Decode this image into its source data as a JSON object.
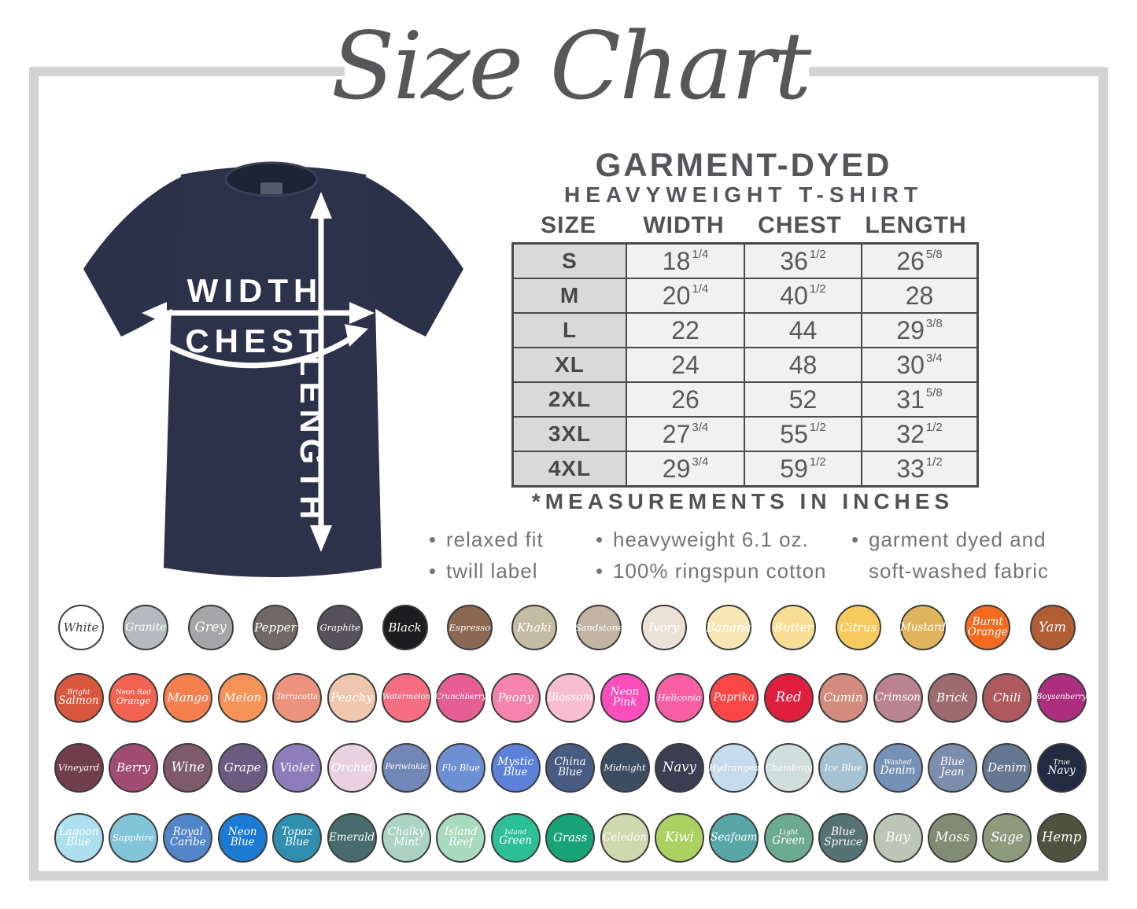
{
  "title": "Size Chart",
  "product": {
    "line1": "GARMENT-DYED",
    "line2": "HEAVYWEIGHT T-SHIRT"
  },
  "diagram": {
    "width": "WIDTH",
    "chest": "CHEST",
    "length": "LENGTH"
  },
  "size_table": {
    "columns": [
      "SIZE",
      "WIDTH",
      "CHEST",
      "LENGTH"
    ],
    "rows": [
      {
        "size": "S",
        "width": "18 1/4",
        "chest": "36 1/2",
        "length": "26 5/8"
      },
      {
        "size": "M",
        "width": "20 1/4",
        "chest": "40 1/2",
        "length": "28"
      },
      {
        "size": "L",
        "width": "22",
        "chest": "44",
        "length": "29 3/8"
      },
      {
        "size": "XL",
        "width": "24",
        "chest": "48",
        "length": "30 3/4"
      },
      {
        "size": "2XL",
        "width": "26",
        "chest": "52",
        "length": "31 5/8"
      },
      {
        "size": "3XL",
        "width": "27 3/4",
        "chest": "55 1/2",
        "length": "32 1/2"
      },
      {
        "size": "4XL",
        "width": "29 3/4",
        "chest": "59 1/2",
        "length": "33 1/2"
      }
    ],
    "footnote": "*MEASUREMENTS IN INCHES"
  },
  "features": [
    {
      "items": [
        {
          "text": "relaxed fit",
          "bullet": true
        },
        {
          "text": "twill label",
          "bullet": true
        }
      ]
    },
    {
      "items": [
        {
          "text": "heavyweight 6.1 oz.",
          "bullet": true
        },
        {
          "text": "100% ringspun cotton",
          "bullet": true
        }
      ]
    },
    {
      "items": [
        {
          "text": "garment dyed and",
          "bullet": true
        },
        {
          "text": "soft-washed fabric",
          "bullet": false
        }
      ]
    }
  ],
  "swatch_rows": [
    [
      {
        "name": "White",
        "color": "#ffffff",
        "text_color": "#3f3f3f",
        "lines": [
          "White"
        ]
      },
      {
        "name": "Granite",
        "color": "#b4babd",
        "lines": [
          "Granite"
        ]
      },
      {
        "name": "Grey",
        "color": "#a6a6a8",
        "lines": [
          "Grey"
        ]
      },
      {
        "name": "Pepper",
        "color": "#6f6a66",
        "lines": [
          "Pepper"
        ]
      },
      {
        "name": "Graphite",
        "color": "#56525a",
        "lines": [
          "Graphite"
        ]
      },
      {
        "name": "Black",
        "color": "#1d1c1e",
        "lines": [
          "Black"
        ]
      },
      {
        "name": "Espresso",
        "color": "#8c6852",
        "lines": [
          "Espresso"
        ]
      },
      {
        "name": "Khaki",
        "color": "#c4bba3",
        "lines": [
          "Khaki"
        ]
      },
      {
        "name": "Sandstone",
        "color": "#c1b4a3",
        "lines": [
          "Sandstone"
        ]
      },
      {
        "name": "Ivory",
        "color": "#ece1d7",
        "lines": [
          "Ivory"
        ]
      },
      {
        "name": "Banana",
        "color": "#f7e7b5",
        "lines": [
          "Banana"
        ]
      },
      {
        "name": "Butter",
        "color": "#f8dd95",
        "lines": [
          "Butter"
        ]
      },
      {
        "name": "Citrus",
        "color": "#f7ca5e",
        "lines": [
          "Citrus"
        ]
      },
      {
        "name": "Mustard",
        "color": "#dfb45c",
        "lines": [
          "Mustard"
        ]
      },
      {
        "name": "Burnt Orange",
        "color": "#f36b21",
        "lines": [
          "Burnt",
          "Orange"
        ]
      },
      {
        "name": "Yam",
        "color": "#b15e35",
        "lines": [
          "Yam"
        ]
      }
    ],
    [
      {
        "name": "Bright Salmon",
        "color": "#d9573d",
        "lines": [
          "Bright",
          "Salmon"
        ],
        "small_top": true
      },
      {
        "name": "Neon Red Orange",
        "color": "#f26250",
        "lines": [
          "Neon Red",
          "Orange"
        ],
        "small_top": true
      },
      {
        "name": "Mango",
        "color": "#f5804d",
        "lines": [
          "Mango"
        ]
      },
      {
        "name": "Melon",
        "color": "#f89358",
        "lines": [
          "Melon"
        ]
      },
      {
        "name": "Terracotta",
        "color": "#ec937d",
        "lines": [
          "Terracotta"
        ]
      },
      {
        "name": "Peachy",
        "color": "#efc7af",
        "lines": [
          "Peachy"
        ]
      },
      {
        "name": "Watermelon",
        "color": "#f56e81",
        "lines": [
          "Watermelon"
        ]
      },
      {
        "name": "Crunchberry",
        "color": "#e75e92",
        "lines": [
          "Crunchberry"
        ]
      },
      {
        "name": "Peony",
        "color": "#f583ab",
        "lines": [
          "Peony"
        ]
      },
      {
        "name": "Blossom",
        "color": "#f9bdd1",
        "lines": [
          "Blossom"
        ]
      },
      {
        "name": "Neon Pink",
        "color": "#fb4dbc",
        "lines": [
          "Neon",
          "Pink"
        ]
      },
      {
        "name": "Heliconia",
        "color": "#fa5fa3",
        "lines": [
          "Heliconia"
        ]
      },
      {
        "name": "Paprika",
        "color": "#fb4646",
        "lines": [
          "Paprika"
        ]
      },
      {
        "name": "Red",
        "color": "#e01f3e",
        "lines": [
          "Red"
        ]
      },
      {
        "name": "Cumin",
        "color": "#d28b7c",
        "lines": [
          "Cumin"
        ]
      },
      {
        "name": "Crimson",
        "color": "#bb8391",
        "lines": [
          "Crimson"
        ]
      },
      {
        "name": "Brick",
        "color": "#9d6a6d",
        "lines": [
          "Brick"
        ]
      },
      {
        "name": "Chili",
        "color": "#ae595e",
        "lines": [
          "Chili"
        ]
      },
      {
        "name": "Boysenberry",
        "color": "#ac2f7f",
        "lines": [
          "Boysenberry"
        ]
      }
    ],
    [
      {
        "name": "Vineyard",
        "color": "#703e4d",
        "lines": [
          "Vineyard"
        ]
      },
      {
        "name": "Berry",
        "color": "#a14c71",
        "lines": [
          "Berry"
        ]
      },
      {
        "name": "Wine",
        "color": "#7e5b6a",
        "lines": [
          "Wine"
        ]
      },
      {
        "name": "Grape",
        "color": "#6a5b80",
        "lines": [
          "Grape"
        ]
      },
      {
        "name": "Violet",
        "color": "#8d7dbb",
        "lines": [
          "Violet"
        ]
      },
      {
        "name": "Orchid",
        "color": "#e8d2e0",
        "lines": [
          "Orchid"
        ]
      },
      {
        "name": "Periwinkle",
        "color": "#7287b7",
        "lines": [
          "Periwinkle"
        ]
      },
      {
        "name": "Flo Blue",
        "color": "#6d8fd4",
        "lines": [
          "Flo Blue"
        ]
      },
      {
        "name": "Mystic Blue",
        "color": "#5c81d9",
        "lines": [
          "Mystic",
          "Blue"
        ]
      },
      {
        "name": "China Blue",
        "color": "#485c83",
        "lines": [
          "China",
          "Blue"
        ]
      },
      {
        "name": "Midnight",
        "color": "#3c4d62",
        "lines": [
          "Midnight"
        ]
      },
      {
        "name": "Navy",
        "color": "#3d3d52",
        "lines": [
          "Navy"
        ]
      },
      {
        "name": "Hydrangea",
        "color": "#c6dced",
        "lines": [
          "Hydrangea"
        ]
      },
      {
        "name": "Chambray",
        "color": "#d0dedc",
        "lines": [
          "Chambray"
        ]
      },
      {
        "name": "Ice Blue",
        "color": "#a5c2d2",
        "lines": [
          "Ice Blue"
        ]
      },
      {
        "name": "Washed Denim",
        "color": "#7592b6",
        "lines": [
          "Washed",
          "Denim"
        ],
        "small_top": true
      },
      {
        "name": "Blue Jean",
        "color": "#7b8dab",
        "lines": [
          "Blue",
          "Jean"
        ]
      },
      {
        "name": "Denim",
        "color": "#667792",
        "lines": [
          "Denim"
        ]
      },
      {
        "name": "True Navy",
        "color": "#222b42",
        "lines": [
          "True",
          "Navy"
        ],
        "small_top": true
      }
    ],
    [
      {
        "name": "Lagoon Blue",
        "color": "#aedfee",
        "lines": [
          "Lagoon",
          "Blue"
        ]
      },
      {
        "name": "Sapphire",
        "color": "#83c5d8",
        "lines": [
          "Sapphire"
        ]
      },
      {
        "name": "Royal Caribe",
        "color": "#5286c9",
        "lines": [
          "Royal",
          "Caribe"
        ]
      },
      {
        "name": "Neon Blue",
        "color": "#1b7ad2",
        "lines": [
          "Neon",
          "Blue"
        ]
      },
      {
        "name": "Topaz Blue",
        "color": "#308eae",
        "lines": [
          "Topaz",
          "Blue"
        ]
      },
      {
        "name": "Emerald",
        "color": "#486c6d",
        "lines": [
          "Emerald"
        ]
      },
      {
        "name": "Chalky Mint",
        "color": "#abd2c3",
        "lines": [
          "Chalky",
          "Mint"
        ]
      },
      {
        "name": "Island Reef",
        "color": "#a8dabe",
        "lines": [
          "Island",
          "Reef"
        ]
      },
      {
        "name": "Island Green",
        "color": "#2dbf96",
        "lines": [
          "Island",
          "Green"
        ],
        "small_top": true
      },
      {
        "name": "Grass",
        "color": "#18a377",
        "lines": [
          "Grass"
        ]
      },
      {
        "name": "Celedon",
        "color": "#cfd8ae",
        "lines": [
          "Celedon"
        ]
      },
      {
        "name": "Kiwi",
        "color": "#abd162",
        "lines": [
          "Kiwi"
        ]
      },
      {
        "name": "Seafoam",
        "color": "#58a6a6",
        "lines": [
          "Seafoam"
        ]
      },
      {
        "name": "Light Green",
        "color": "#6daa92",
        "lines": [
          "Light",
          "Green"
        ],
        "small_top": true
      },
      {
        "name": "Blue Spruce",
        "color": "#567274",
        "lines": [
          "Blue",
          "Spruce"
        ]
      },
      {
        "name": "Bay",
        "color": "#bbc6b7",
        "lines": [
          "Bay"
        ]
      },
      {
        "name": "Moss",
        "color": "#818c74",
        "lines": [
          "Moss"
        ]
      },
      {
        "name": "Sage",
        "color": "#8e9a7c",
        "lines": [
          "Sage"
        ]
      },
      {
        "name": "Hemp",
        "color": "#50543f",
        "lines": [
          "Hemp"
        ]
      }
    ]
  ]
}
